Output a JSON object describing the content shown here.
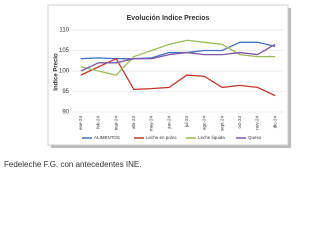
{
  "chart_data": {
    "type": "line",
    "title": "Evolución  Indice Precios",
    "y_label": "Indice Precio",
    "categories": [
      "ene-24",
      "feb-24",
      "mar-24",
      "abr-24",
      "may-24",
      "jun-24",
      "jul-24",
      "ago-24",
      "sept-24",
      "oct-24",
      "nov-24",
      "dic-24"
    ],
    "series": [
      {
        "name": "ALIMENTOS",
        "color": "#4472c4",
        "values": [
          103,
          103.2,
          103,
          103,
          103.2,
          104.5,
          104.5,
          105,
          105,
          107,
          107,
          106
        ]
      },
      {
        "name": "Leche en polvo",
        "color": "#c0392b",
        "values": [
          99,
          101,
          103,
          95.5,
          95.7,
          96,
          99,
          98.7,
          96,
          96.5,
          96,
          94
        ]
      },
      {
        "name": "Leche líquida",
        "color": "#9bbb59",
        "values": [
          101,
          100,
          99,
          103.5,
          105,
          106.5,
          107.5,
          107,
          106.5,
          104,
          103.5,
          103.5
        ]
      },
      {
        "name": "Queso",
        "color": "#7e57a8",
        "values": [
          100,
          102,
          102,
          103,
          103,
          104,
          104.5,
          104,
          104,
          104.5,
          104,
          106.5
        ]
      }
    ],
    "ylim": [
      90,
      110
    ],
    "yticks": [
      90,
      95,
      100,
      105,
      110
    ],
    "grid": true
  },
  "caption": "Fedeleche F.G. con antecedentes INE."
}
